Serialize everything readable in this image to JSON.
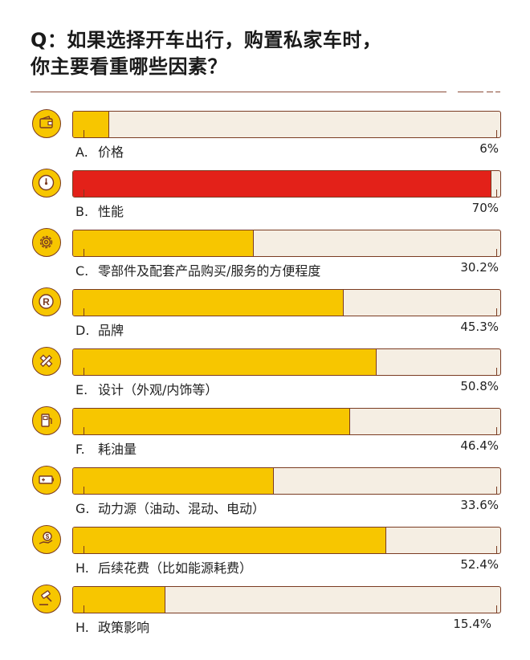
{
  "title": {
    "line1": "Q：如果选择开车出行，购置私家车时，",
    "line2": "你主要看重哪些因素？"
  },
  "colors": {
    "bar_fill": "#f7c600",
    "bar_highlight": "#e32119",
    "track": "#f5eee3",
    "outline": "#7a3b22"
  },
  "chart_data": {
    "type": "bar",
    "orientation": "horizontal",
    "xlim": [
      0,
      70
    ],
    "categories": [
      {
        "letter": "A.",
        "label": "价格",
        "value": 6,
        "display": "6%",
        "icon": "wallet-icon",
        "highlight": false
      },
      {
        "letter": "B.",
        "label": "性能",
        "value": 70,
        "display": "70%",
        "icon": "speedometer-icon",
        "highlight": true
      },
      {
        "letter": "C.",
        "label": "零部件及配套产品购买/服务的方便程度",
        "value": 30.2,
        "display": "30.2%",
        "icon": "gear-icon",
        "highlight": false
      },
      {
        "letter": "D.",
        "label": "品牌",
        "value": 45.3,
        "display": "45.3%",
        "icon": "registered-trademark-icon",
        "highlight": false
      },
      {
        "letter": "E.",
        "label": "设计（外观/内饰等）",
        "value": 50.8,
        "display": "50.8%",
        "icon": "pencil-ruler-icon",
        "highlight": false
      },
      {
        "letter": "F.",
        "label": "耗油量",
        "value": 46.4,
        "display": "46.4%",
        "icon": "fuel-pump-icon",
        "highlight": false
      },
      {
        "letter": "G.",
        "label": "动力源（油动、混动、电动）",
        "value": 33.6,
        "display": "33.6%",
        "icon": "battery-icon",
        "highlight": false
      },
      {
        "letter": "H.",
        "label": "后续花费（比如能源耗费）",
        "value": 52.4,
        "display": "52.4%",
        "icon": "money-hand-icon",
        "highlight": false
      },
      {
        "letter": "H.",
        "label": "政策影响",
        "value": 15.4,
        "display": "15.4%",
        "icon": "gavel-icon",
        "highlight": false
      }
    ]
  }
}
